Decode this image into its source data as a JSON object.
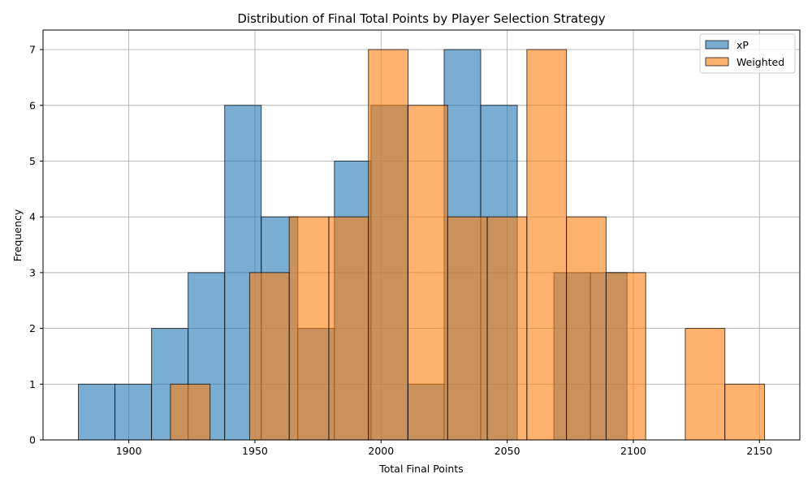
{
  "chart_data": {
    "type": "bar",
    "title": "Distribution of Final Total Points by Player Selection Strategy",
    "xlabel": "Total Final Points",
    "ylabel": "Frequency",
    "xlim": [
      1866,
      2166
    ],
    "ylim": [
      0,
      7.35
    ],
    "x_ticks": [
      1900,
      1950,
      2000,
      2050,
      2100,
      2150
    ],
    "y_ticks": [
      0,
      1,
      2,
      3,
      4,
      5,
      6,
      7
    ],
    "grid": true,
    "legend_position": "top-right",
    "series": [
      {
        "name": "xP",
        "color": "#1f77b4",
        "opacity": 0.6,
        "bins": [
          {
            "x0": 1880,
            "x1": 1894.5,
            "value": 1
          },
          {
            "x0": 1894.5,
            "x1": 1909,
            "value": 1
          },
          {
            "x0": 1909,
            "x1": 1923.5,
            "value": 2
          },
          {
            "x0": 1923.5,
            "x1": 1938,
            "value": 3
          },
          {
            "x0": 1938,
            "x1": 1952.5,
            "value": 6
          },
          {
            "x0": 1952.5,
            "x1": 1967,
            "value": 4
          },
          {
            "x0": 1967,
            "x1": 1981.5,
            "value": 2
          },
          {
            "x0": 1981.5,
            "x1": 1996,
            "value": 5
          },
          {
            "x0": 1996,
            "x1": 2010.5,
            "value": 6
          },
          {
            "x0": 2010.5,
            "x1": 2025,
            "value": 1
          },
          {
            "x0": 2025,
            "x1": 2039.5,
            "value": 7
          },
          {
            "x0": 2039.5,
            "x1": 2054,
            "value": 6
          },
          {
            "x0": 2054,
            "x1": 2068.5,
            "value": 0
          },
          {
            "x0": 2068.5,
            "x1": 2083,
            "value": 3
          },
          {
            "x0": 2083,
            "x1": 2097.5,
            "value": 3
          }
        ]
      },
      {
        "name": "Weighted",
        "color": "#ff7f0e",
        "opacity": 0.6,
        "bins": [
          {
            "x0": 1916.5,
            "x1": 1932.2,
            "value": 1
          },
          {
            "x0": 1932.2,
            "x1": 1947.9,
            "value": 0
          },
          {
            "x0": 1947.9,
            "x1": 1963.6,
            "value": 3
          },
          {
            "x0": 1963.6,
            "x1": 1979.3,
            "value": 4
          },
          {
            "x0": 1979.3,
            "x1": 1995.0,
            "value": 4
          },
          {
            "x0": 1995.0,
            "x1": 2010.7,
            "value": 7
          },
          {
            "x0": 2010.7,
            "x1": 2026.4,
            "value": 6
          },
          {
            "x0": 2026.4,
            "x1": 2042.1,
            "value": 4
          },
          {
            "x0": 2042.1,
            "x1": 2057.8,
            "value": 4
          },
          {
            "x0": 2057.8,
            "x1": 2073.5,
            "value": 7
          },
          {
            "x0": 2073.5,
            "x1": 2089.2,
            "value": 4
          },
          {
            "x0": 2089.2,
            "x1": 2104.9,
            "value": 3
          },
          {
            "x0": 2104.9,
            "x1": 2120.6,
            "value": 0
          },
          {
            "x0": 2120.6,
            "x1": 2136.3,
            "value": 2
          },
          {
            "x0": 2136.3,
            "x1": 2152.0,
            "value": 1
          }
        ]
      }
    ]
  }
}
